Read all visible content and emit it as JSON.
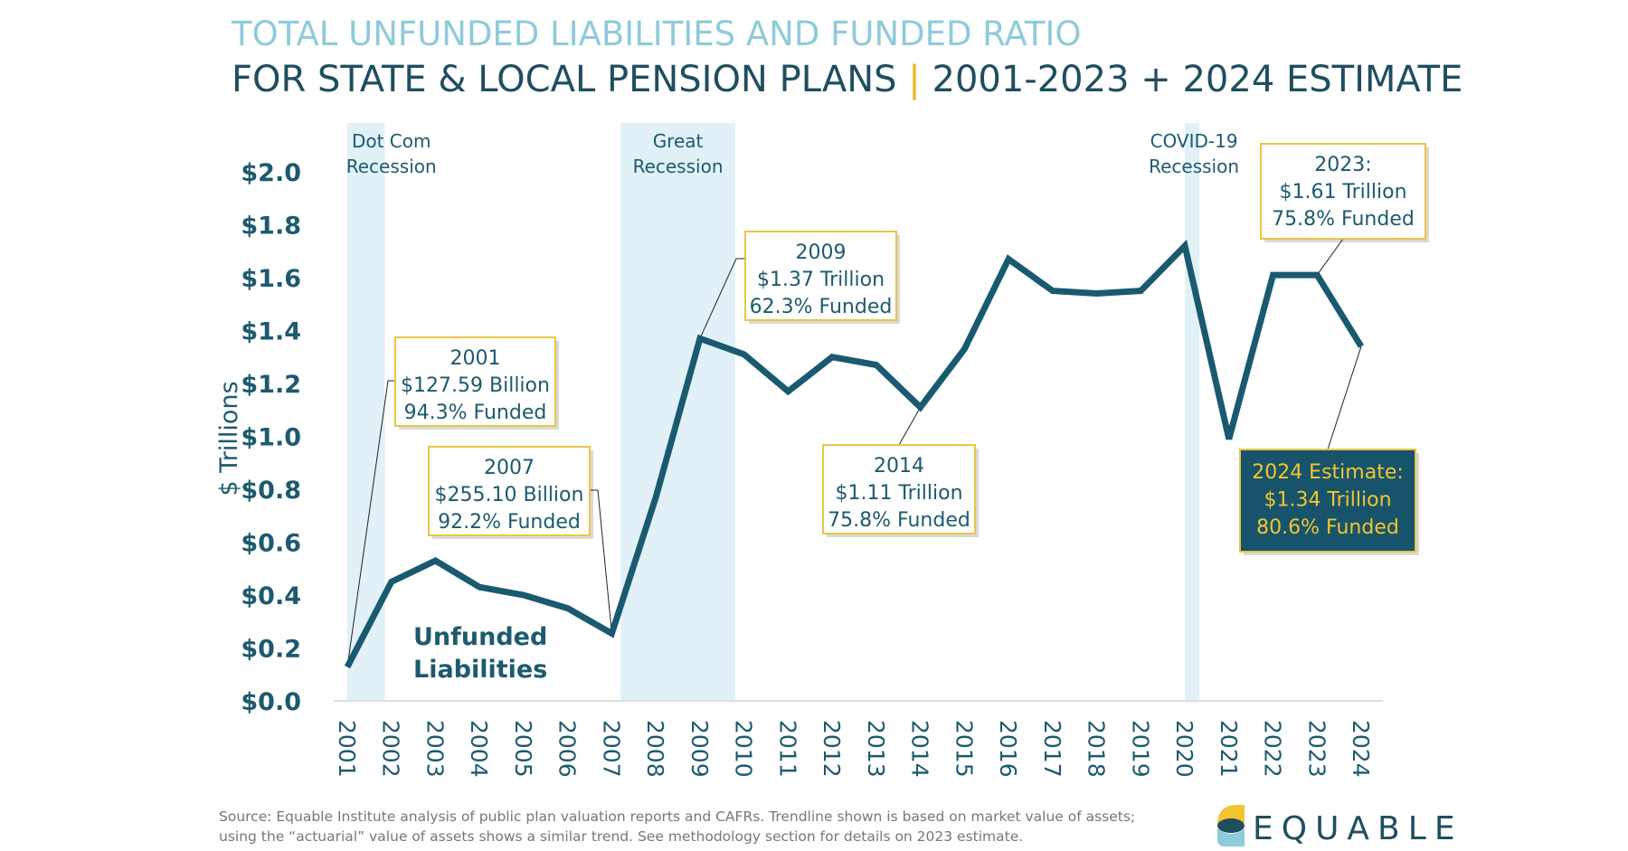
{
  "title": {
    "line1": "TOTAL UNFUNDED LIABILITIES AND FUNDED RATIO",
    "line2_left": "FOR STATE & LOCAL PENSION PLANS",
    "separator": "|",
    "line2_right": "2001-2023 + 2024 ESTIMATE"
  },
  "chart_data": {
    "type": "line",
    "ylabel": "$ Trillions",
    "ylim": [
      0,
      2.0
    ],
    "yticks": [
      "$0.0",
      "$0.2",
      "$0.4",
      "$0.6",
      "$0.8",
      "$1.0",
      "$1.2",
      "$1.4",
      "$1.6",
      "$1.8",
      "$2.0"
    ],
    "x": [
      "2001",
      "2002",
      "2003",
      "2004",
      "2005",
      "2006",
      "2007",
      "2008",
      "2009",
      "2010",
      "2011",
      "2012",
      "2013",
      "2014",
      "2015",
      "2016",
      "2017",
      "2018",
      "2019",
      "2020",
      "2021",
      "2022",
      "2023",
      "2024"
    ],
    "series": [
      {
        "name": "Unfunded Liabilities",
        "values": [
          0.128,
          0.45,
          0.53,
          0.43,
          0.4,
          0.35,
          0.255,
          0.77,
          1.37,
          1.31,
          1.17,
          1.3,
          1.27,
          1.11,
          1.33,
          1.67,
          1.55,
          1.54,
          1.55,
          1.72,
          0.99,
          1.61,
          1.61,
          1.34
        ]
      }
    ],
    "series_label": [
      "Unfunded",
      "Liabilities"
    ],
    "recessions": [
      {
        "label": [
          "Dot Com",
          "Recession"
        ],
        "start": 2001.0,
        "end": 2001.85
      },
      {
        "label": [
          "Great",
          "Recession"
        ],
        "start": 2007.2,
        "end": 2009.8
      },
      {
        "label": [
          "COVID-19",
          "Recession"
        ],
        "start": 2020.0,
        "end": 2020.33
      }
    ],
    "annotations": [
      {
        "lines": [
          "2001",
          "$127.59 Billion",
          "94.3% Funded"
        ]
      },
      {
        "lines": [
          "2007",
          "$255.10 Billion",
          "92.2% Funded"
        ]
      },
      {
        "lines": [
          "2009",
          "$1.37 Trillion",
          "62.3% Funded"
        ]
      },
      {
        "lines": [
          "2014",
          "$1.11 Trillion",
          "75.8% Funded"
        ]
      },
      {
        "lines": [
          "2023:",
          "$1.61 Trillion",
          "75.8% Funded"
        ]
      },
      {
        "lines": [
          "2024 Estimate:",
          "$1.34 Trillion",
          "80.6% Funded"
        ]
      }
    ],
    "grid": false,
    "colors": {
      "line": "#1a5a70",
      "recession": "#e1f1f7",
      "box_border": "#e8c547",
      "highlight_box": "#17546b",
      "highlight_text": "#f2c530"
    }
  },
  "source": {
    "line1": "Source: Equable Institute analysis of public plan valuation reports and CAFRs. Trendline shown is based on market value of assets;",
    "line2": "using the “actuarial” value of assets shows a similar trend.  See methodology section for details on 2023 estimate."
  },
  "logo": {
    "text": "EQUABLE"
  }
}
